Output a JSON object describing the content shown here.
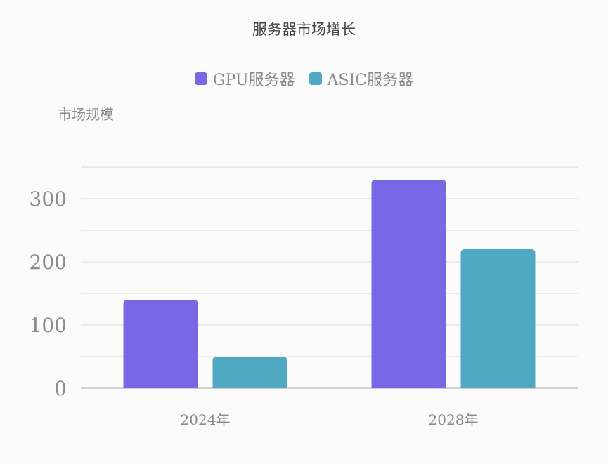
{
  "chart_data": {
    "type": "bar",
    "title": "服务器市场增长",
    "ylabel": "市场规模",
    "xlabel": "",
    "categories": [
      "2024年",
      "2028年"
    ],
    "series": [
      {
        "name": "GPU服务器",
        "values": [
          140,
          330
        ],
        "color": "#7868e6"
      },
      {
        "name": "ASIC服务器",
        "values": [
          50,
          220
        ],
        "color": "#4fa9c2"
      }
    ],
    "ylim": [
      0,
      350
    ],
    "yticks": [
      0,
      100,
      200,
      300
    ],
    "grid": true,
    "legend_position": "top"
  }
}
